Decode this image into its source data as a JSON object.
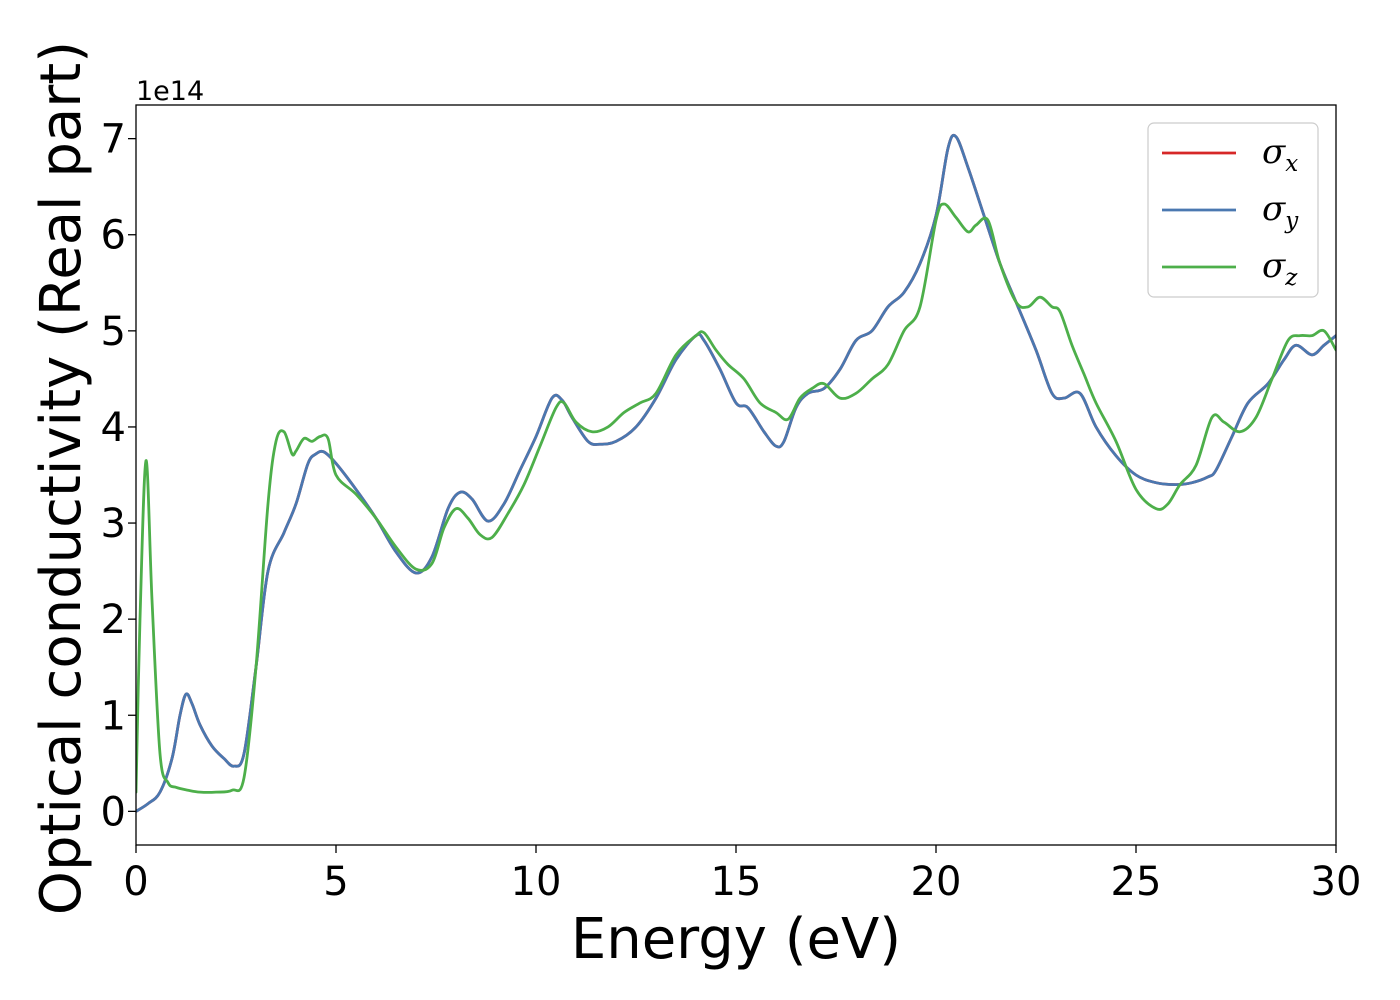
{
  "chart_data": {
    "type": "line",
    "title": "",
    "xlabel": "Energy (eV)",
    "ylabel": "Optical conductivity (Real part)",
    "y_multiplier": "1e14",
    "xlim": [
      0,
      30
    ],
    "ylim": [
      -0.35,
      7.35
    ],
    "x_ticks": [
      0,
      5,
      10,
      15,
      20,
      25,
      30
    ],
    "y_ticks": [
      0,
      1,
      2,
      3,
      4,
      5,
      6,
      7
    ],
    "grid": false,
    "legend_position": "top-right",
    "series": [
      {
        "name": "σx",
        "legend_symbol": "σ",
        "legend_subscript": "x",
        "color": "#d62728",
        "x": [
          0,
          0.3,
          0.6,
          0.9,
          1.1,
          1.25,
          1.4,
          1.6,
          1.9,
          2.2,
          2.45,
          2.7,
          3.0,
          3.3,
          3.7,
          4.0,
          4.3,
          4.5,
          4.7,
          5.0,
          5.5,
          6.0,
          6.5,
          7.0,
          7.4,
          7.8,
          8.1,
          8.4,
          8.8,
          9.2,
          9.6,
          10.0,
          10.4,
          10.65,
          10.9,
          11.3,
          11.6,
          12.0,
          12.5,
          13.0,
          13.5,
          14.0,
          14.2,
          14.6,
          15.0,
          15.3,
          15.7,
          16.0,
          16.2,
          16.5,
          16.8,
          17.2,
          17.6,
          18.0,
          18.4,
          18.8,
          19.2,
          19.6,
          20.0,
          20.3,
          20.5,
          20.8,
          21.2,
          21.6,
          22.0,
          22.5,
          22.9,
          23.2,
          23.6,
          24.0,
          24.5,
          25.0,
          25.5,
          26.0,
          26.4,
          26.8,
          27.0,
          27.4,
          27.8,
          28.3,
          28.7,
          29.0,
          29.4,
          29.7,
          30.0
        ],
        "y": [
          0.0,
          0.08,
          0.2,
          0.55,
          1.0,
          1.22,
          1.12,
          0.9,
          0.68,
          0.55,
          0.47,
          0.6,
          1.5,
          2.5,
          2.9,
          3.2,
          3.62,
          3.72,
          3.74,
          3.62,
          3.35,
          3.05,
          2.7,
          2.48,
          2.65,
          3.15,
          3.32,
          3.25,
          3.02,
          3.2,
          3.55,
          3.9,
          4.3,
          4.28,
          4.1,
          3.85,
          3.82,
          3.85,
          4.0,
          4.3,
          4.7,
          4.95,
          4.9,
          4.6,
          4.25,
          4.2,
          3.95,
          3.8,
          3.85,
          4.2,
          4.35,
          4.4,
          4.6,
          4.9,
          5.0,
          5.25,
          5.4,
          5.7,
          6.2,
          6.9,
          7.02,
          6.7,
          6.2,
          5.7,
          5.3,
          4.8,
          4.35,
          4.3,
          4.35,
          4.0,
          3.7,
          3.5,
          3.42,
          3.4,
          3.42,
          3.48,
          3.55,
          3.9,
          4.25,
          4.45,
          4.7,
          4.85,
          4.75,
          4.85,
          4.95
        ]
      },
      {
        "name": "σy",
        "legend_symbol": "σ",
        "legend_subscript": "y",
        "color": "#4a78b0",
        "x": [
          0,
          0.3,
          0.6,
          0.9,
          1.1,
          1.25,
          1.4,
          1.6,
          1.9,
          2.2,
          2.45,
          2.7,
          3.0,
          3.3,
          3.7,
          4.0,
          4.3,
          4.5,
          4.7,
          5.0,
          5.5,
          6.0,
          6.5,
          7.0,
          7.4,
          7.8,
          8.1,
          8.4,
          8.8,
          9.2,
          9.6,
          10.0,
          10.4,
          10.65,
          10.9,
          11.3,
          11.6,
          12.0,
          12.5,
          13.0,
          13.5,
          14.0,
          14.2,
          14.6,
          15.0,
          15.3,
          15.7,
          16.0,
          16.2,
          16.5,
          16.8,
          17.2,
          17.6,
          18.0,
          18.4,
          18.8,
          19.2,
          19.6,
          20.0,
          20.3,
          20.5,
          20.8,
          21.2,
          21.6,
          22.0,
          22.5,
          22.9,
          23.2,
          23.6,
          24.0,
          24.5,
          25.0,
          25.5,
          26.0,
          26.4,
          26.8,
          27.0,
          27.4,
          27.8,
          28.3,
          28.7,
          29.0,
          29.4,
          29.7,
          30.0
        ],
        "y": [
          0.0,
          0.08,
          0.2,
          0.55,
          1.0,
          1.22,
          1.12,
          0.9,
          0.68,
          0.55,
          0.47,
          0.6,
          1.5,
          2.5,
          2.9,
          3.2,
          3.62,
          3.72,
          3.74,
          3.62,
          3.35,
          3.05,
          2.7,
          2.48,
          2.65,
          3.15,
          3.32,
          3.25,
          3.02,
          3.2,
          3.55,
          3.9,
          4.3,
          4.28,
          4.1,
          3.85,
          3.82,
          3.85,
          4.0,
          4.3,
          4.7,
          4.95,
          4.9,
          4.6,
          4.25,
          4.2,
          3.95,
          3.8,
          3.85,
          4.2,
          4.35,
          4.4,
          4.6,
          4.9,
          5.0,
          5.25,
          5.4,
          5.7,
          6.2,
          6.9,
          7.02,
          6.7,
          6.2,
          5.7,
          5.3,
          4.8,
          4.35,
          4.3,
          4.35,
          4.0,
          3.7,
          3.5,
          3.42,
          3.4,
          3.42,
          3.48,
          3.55,
          3.9,
          4.25,
          4.45,
          4.7,
          4.85,
          4.75,
          4.85,
          4.95
        ]
      },
      {
        "name": "σz",
        "legend_symbol": "σ",
        "legend_subscript": "z",
        "color": "#4daf4a",
        "x": [
          0,
          0.1,
          0.25,
          0.4,
          0.6,
          0.8,
          1.0,
          1.3,
          1.6,
          2.0,
          2.4,
          2.7,
          3.0,
          3.3,
          3.5,
          3.7,
          3.9,
          4.0,
          4.2,
          4.4,
          4.6,
          4.8,
          5.0,
          5.5,
          6.0,
          6.5,
          7.0,
          7.4,
          7.7,
          8.0,
          8.3,
          8.6,
          8.9,
          9.3,
          9.7,
          10.1,
          10.5,
          10.7,
          11.0,
          11.4,
          11.8,
          12.2,
          12.6,
          13.0,
          13.5,
          14.0,
          14.2,
          14.5,
          14.8,
          15.2,
          15.6,
          16.0,
          16.3,
          16.6,
          16.9,
          17.2,
          17.6,
          18.0,
          18.4,
          18.8,
          19.2,
          19.6,
          20.0,
          20.2,
          20.5,
          20.8,
          21.0,
          21.3,
          21.6,
          22.0,
          22.3,
          22.6,
          22.9,
          23.1,
          23.4,
          23.7,
          24.0,
          24.5,
          25.0,
          25.5,
          25.8,
          26.1,
          26.5,
          26.9,
          27.2,
          27.6,
          28.0,
          28.4,
          28.8,
          29.1,
          29.4,
          29.7,
          30.0
        ],
        "y": [
          0.2,
          2.0,
          3.65,
          2.2,
          0.6,
          0.3,
          0.25,
          0.22,
          0.2,
          0.2,
          0.22,
          0.35,
          1.5,
          3.2,
          3.85,
          3.95,
          3.72,
          3.75,
          3.88,
          3.85,
          3.9,
          3.88,
          3.5,
          3.3,
          3.05,
          2.75,
          2.52,
          2.58,
          2.95,
          3.15,
          3.05,
          2.88,
          2.85,
          3.1,
          3.4,
          3.8,
          4.2,
          4.25,
          4.05,
          3.95,
          4.0,
          4.15,
          4.25,
          4.35,
          4.75,
          4.95,
          4.98,
          4.8,
          4.65,
          4.5,
          4.25,
          4.15,
          4.08,
          4.3,
          4.4,
          4.45,
          4.3,
          4.35,
          4.5,
          4.65,
          5.0,
          5.25,
          6.15,
          6.32,
          6.18,
          6.03,
          6.1,
          6.15,
          5.7,
          5.3,
          5.25,
          5.35,
          5.25,
          5.2,
          4.85,
          4.55,
          4.25,
          3.85,
          3.35,
          3.15,
          3.2,
          3.4,
          3.6,
          4.1,
          4.05,
          3.95,
          4.1,
          4.5,
          4.9,
          4.95,
          4.95,
          5.0,
          4.8
        ]
      }
    ]
  }
}
